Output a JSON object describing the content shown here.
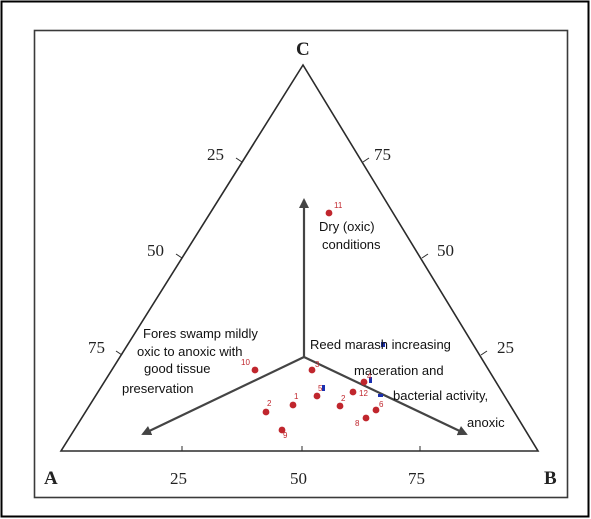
{
  "frame": {
    "outer_border_color": "#000000",
    "inner_border_color": "#3a3a3a"
  },
  "colors": {
    "triangle": "#2b2b2b",
    "axis": "#444444",
    "point": "#c0262d",
    "blue_marker": "#1a2fb0"
  },
  "vertices": {
    "A": "A",
    "B": "B",
    "C": "C"
  },
  "tick_labels": {
    "bottom": [
      "25",
      "50",
      "75"
    ],
    "left": [
      "25",
      "50",
      "75"
    ],
    "right": [
      "75",
      "50",
      "25"
    ]
  },
  "annotations": {
    "dry": [
      "Dry (oxic)",
      "conditions"
    ],
    "fores": [
      "Fores swamp mildly",
      "oxic to anoxic with",
      "good tissue",
      "preservation"
    ],
    "reed": [
      "Reed marash increasing",
      "maceration and",
      "bacterial activity,",
      "anoxic"
    ]
  },
  "points": [
    {
      "label": "11"
    },
    {
      "label": "10"
    },
    {
      "label": "3"
    },
    {
      "label": "5"
    },
    {
      "label": "4"
    },
    {
      "label": "12"
    },
    {
      "label": "2"
    },
    {
      "label": "1"
    },
    {
      "label": "2"
    },
    {
      "label": "6"
    },
    {
      "label": "8"
    },
    {
      "label": "9"
    }
  ]
}
